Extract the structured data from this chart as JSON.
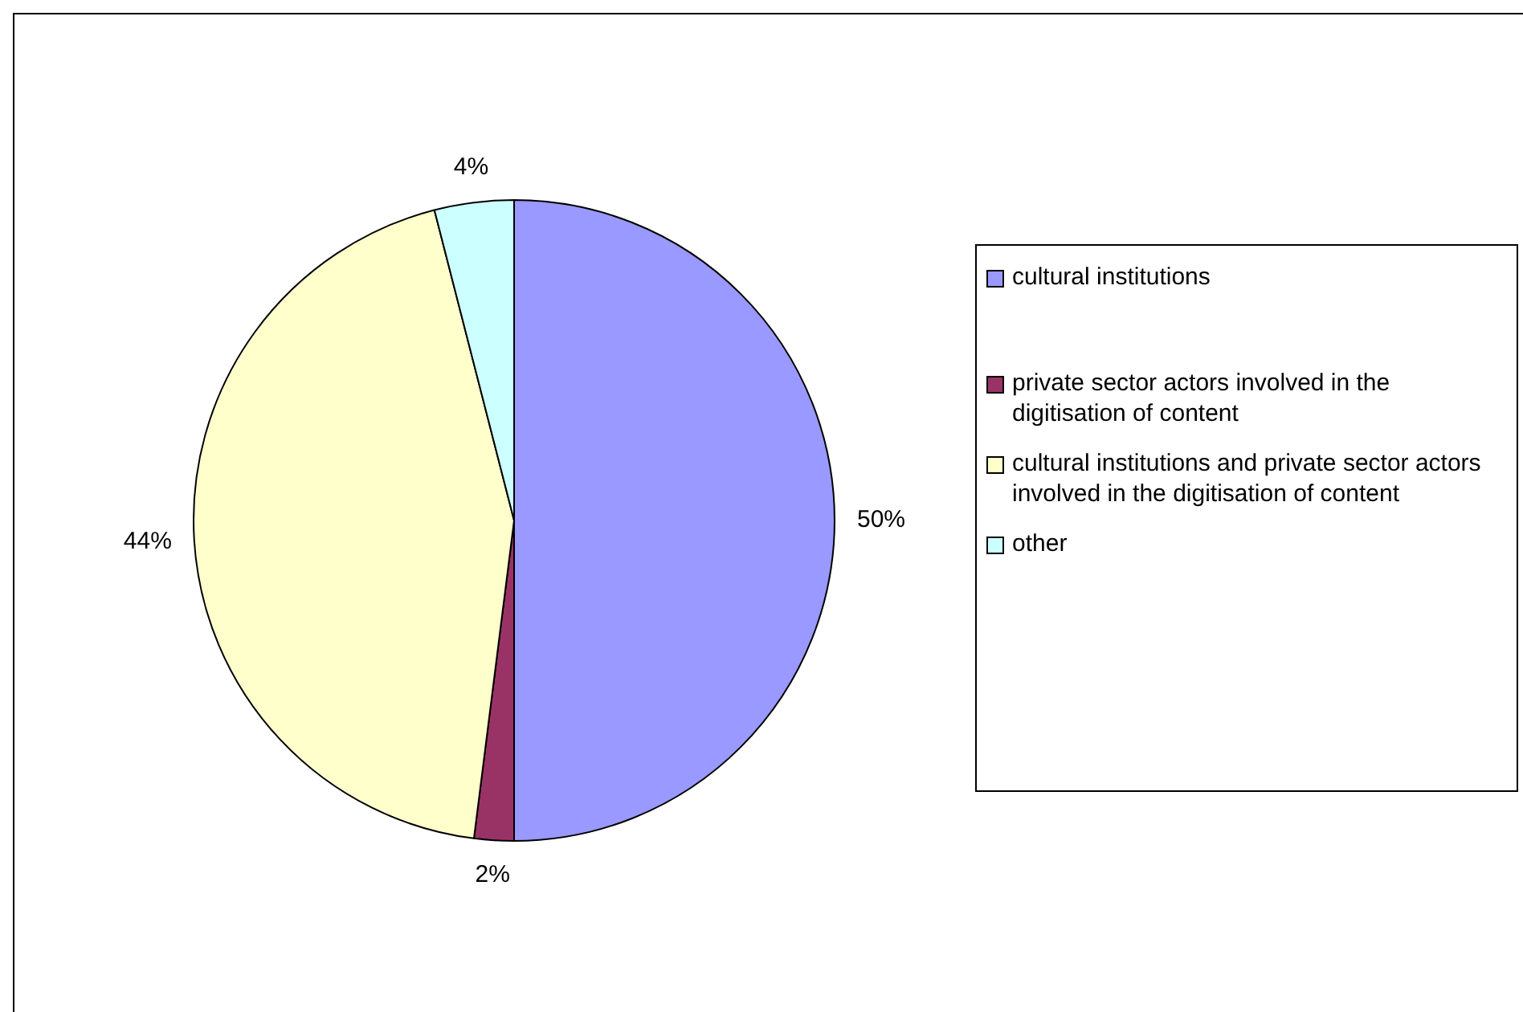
{
  "chart_data": {
    "type": "pie",
    "categories": [
      "cultural institutions",
      "private sector actors involved in the digitisation of content",
      "cultural institutions and private sector actors involved in the digitisation of content",
      "other"
    ],
    "values": [
      50,
      2,
      44,
      4
    ],
    "colors": [
      "#9999ff",
      "#993366",
      "#ffffcc",
      "#ccffff"
    ],
    "value_labels": [
      "50%",
      "2%",
      "44%",
      "4%"
    ],
    "legend": "right"
  }
}
